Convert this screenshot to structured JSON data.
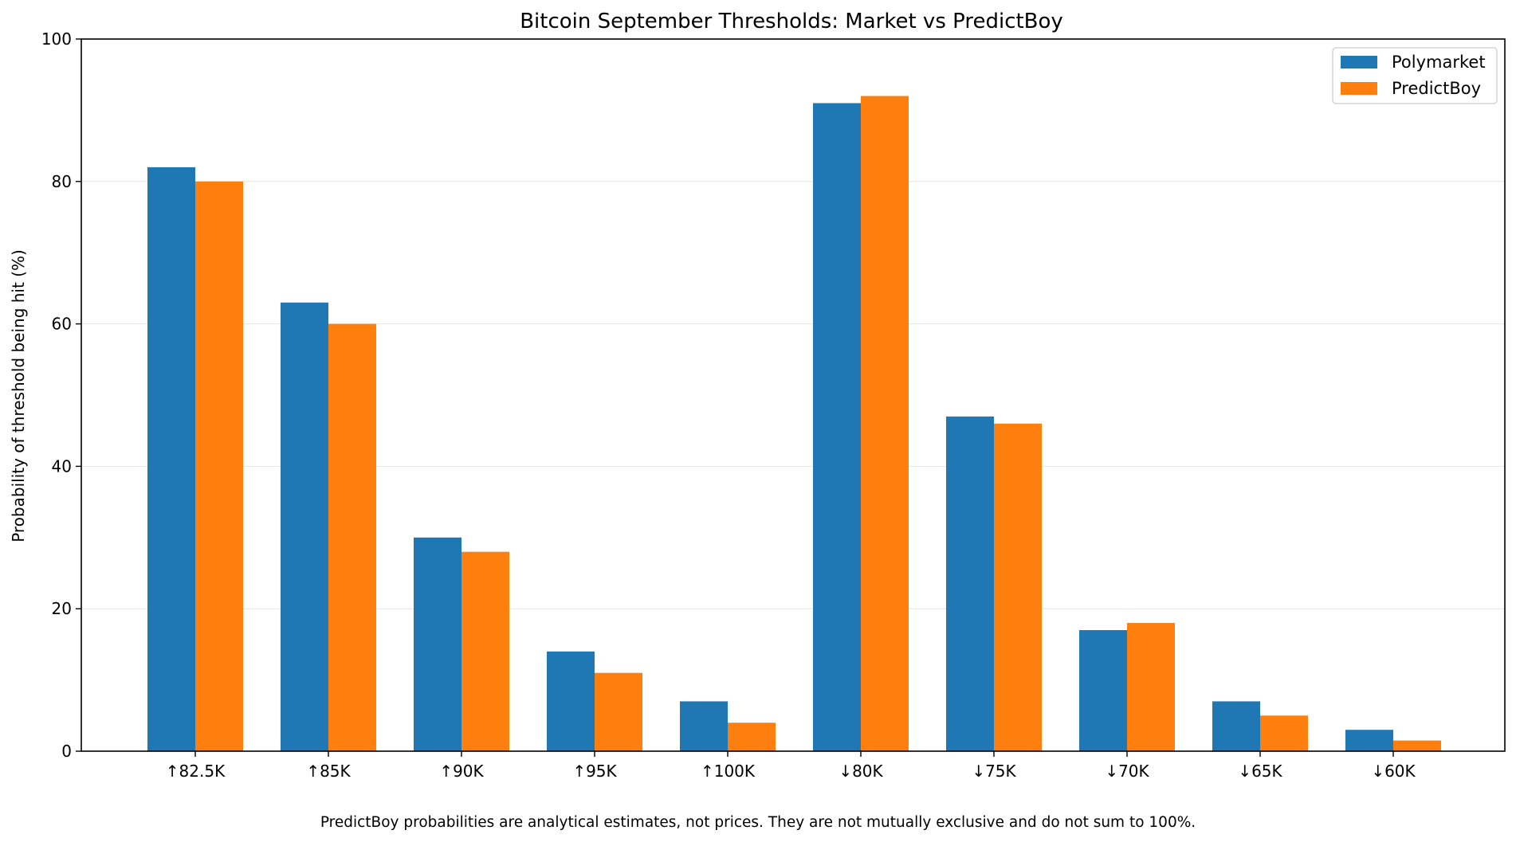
{
  "chart_data": {
    "type": "bar",
    "title": "Bitcoin September Thresholds: Market vs PredictBoy",
    "xlabel": "",
    "ylabel": "Probability of threshold being hit (%)",
    "ylim": [
      0,
      100
    ],
    "yticks": [
      0,
      20,
      40,
      60,
      80,
      100
    ],
    "ytick_labels": [
      "0",
      "20",
      "40",
      "60",
      "80",
      "100"
    ],
    "categories": [
      "↑82.5K",
      "↑85K",
      "↑90K",
      "↑95K",
      "↑100K",
      "↓80K",
      "↓75K",
      "↓70K",
      "↓65K",
      "↓60K"
    ],
    "series": [
      {
        "name": "Polymarket",
        "color": "#1f77b4",
        "values": [
          82,
          63,
          30,
          14,
          7,
          91,
          47,
          17,
          7,
          3
        ]
      },
      {
        "name": "PredictBoy",
        "color": "#ff7f0e",
        "values": [
          80,
          60,
          28,
          11,
          4,
          92,
          46,
          18,
          5,
          1.5
        ]
      }
    ],
    "grid": "horizontal",
    "legend_position": "top-right"
  },
  "footnote": "PredictBoy probabilities are analytical estimates, not prices. They are not mutually exclusive and do not sum to 100%."
}
